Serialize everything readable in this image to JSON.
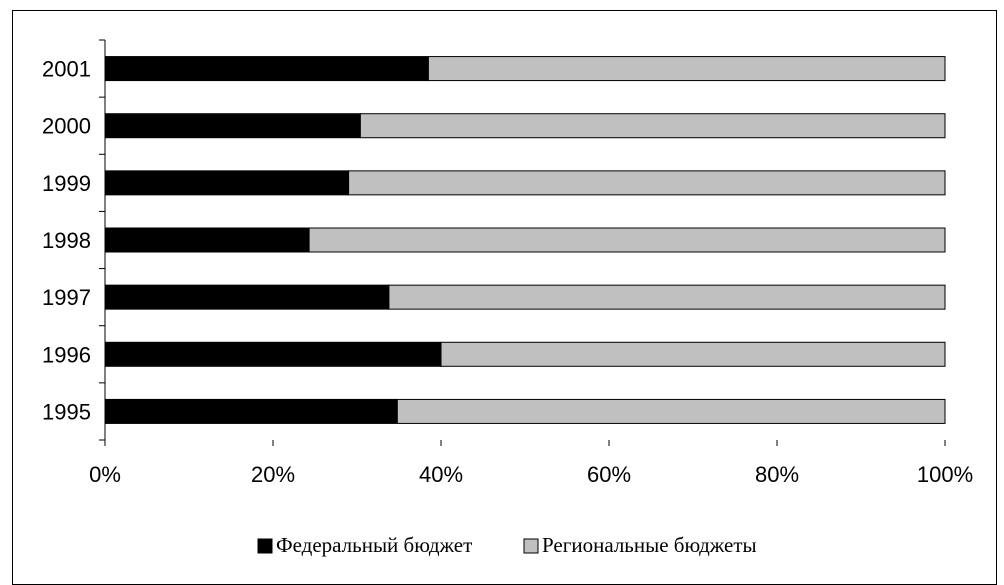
{
  "chart_data": {
    "type": "bar",
    "orientation": "horizontal",
    "stacked": "percent",
    "categories": [
      "1995",
      "1996",
      "1997",
      "1998",
      "1999",
      "2000",
      "2001"
    ],
    "series": [
      {
        "name": "Федеральный бюджет",
        "color": "#000000",
        "values": [
          34.8,
          40.0,
          33.8,
          24.3,
          29.0,
          30.4,
          38.5
        ]
      },
      {
        "name": "Региональные бюджеты",
        "color": "#c0c0c0",
        "values": [
          65.2,
          60.0,
          66.2,
          75.7,
          71.0,
          69.6,
          61.5
        ]
      }
    ],
    "x_ticks": [
      "0%",
      "20%",
      "40%",
      "60%",
      "80%",
      "100%"
    ],
    "xlim": [
      0,
      100
    ],
    "grid": false,
    "legend_position": "bottom"
  }
}
